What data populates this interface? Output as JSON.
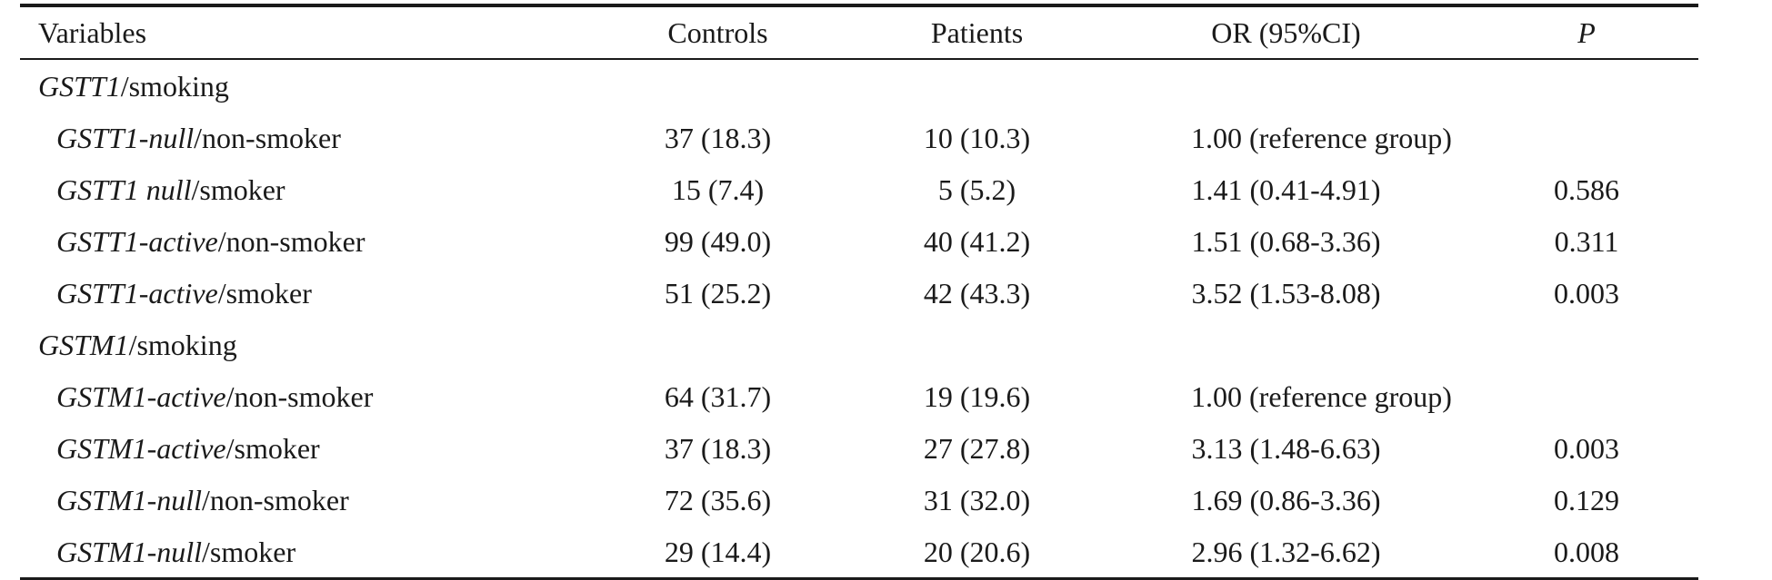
{
  "table": {
    "headers": {
      "variables": "Variables",
      "controls": "Controls",
      "patients": "Patients",
      "or": "OR (95%CI)",
      "p": "P"
    },
    "groups": [
      {
        "gene": "GSTT1",
        "suffix": "/smoking",
        "rows": [
          {
            "gene_it": "GSTT1-null",
            "rest": "/non-smoker",
            "controls": "37 (18.3)",
            "patients": "10 (10.3)",
            "or": "1.00 (reference group)",
            "p": ""
          },
          {
            "gene_it": "GSTT1 null",
            "rest": "/smoker",
            "controls": "15 (7.4)",
            "patients": "5 (5.2)",
            "or": "1.41 (0.41-4.91)",
            "p": "0.586"
          },
          {
            "gene_it": "GSTT1-active",
            "rest": "/non-smoker",
            "controls": "99 (49.0)",
            "patients": "40 (41.2)",
            "or": "1.51 (0.68-3.36)",
            "p": "0.311"
          },
          {
            "gene_it": "GSTT1-active",
            "rest": "/smoker",
            "controls": "51 (25.2)",
            "patients": "42 (43.3)",
            "or": "3.52 (1.53-8.08)",
            "p": "0.003"
          }
        ]
      },
      {
        "gene": "GSTM1",
        "suffix": "/smoking",
        "rows": [
          {
            "gene_it": "GSTM1-active",
            "rest": "/non-smoker",
            "controls": "64 (31.7)",
            "patients": "19 (19.6)",
            "or": "1.00 (reference group)",
            "p": ""
          },
          {
            "gene_it": "GSTM1-active",
            "rest": "/smoker",
            "controls": "37 (18.3)",
            "patients": "27 (27.8)",
            "or": "3.13 (1.48-6.63)",
            "p": "0.003"
          },
          {
            "gene_it": "GSTM1-null",
            "rest": "/non-smoker",
            "controls": "72 (35.6)",
            "patients": "31 (32.0)",
            "or": "1.69 (0.86-3.36)",
            "p": "0.129"
          },
          {
            "gene_it": "GSTM1-null",
            "rest": "/smoker",
            "controls": "29 (14.4)",
            "patients": "20 (20.6)",
            "or": "2.96 (1.32-6.62)",
            "p": "0.008"
          }
        ]
      }
    ]
  }
}
